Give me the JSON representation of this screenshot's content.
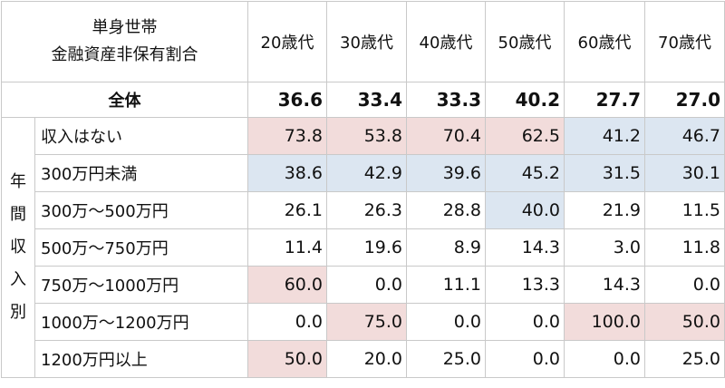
{
  "table": {
    "title_line1": "単身世帯",
    "title_line2": "金融資産非保有割合",
    "columns": [
      "20歳代",
      "30歳代",
      "40歳代",
      "50歳代",
      "60歳代",
      "70歳代"
    ],
    "total": {
      "label": "全体",
      "values": [
        "36.6",
        "33.4",
        "33.3",
        "40.2",
        "27.7",
        "27.0"
      ]
    },
    "group_label": [
      "年",
      "間",
      "収",
      "入",
      "別"
    ],
    "rows": [
      {
        "label": "収入はない",
        "values": [
          "73.8",
          "53.8",
          "70.4",
          "62.5",
          "41.2",
          "46.7"
        ],
        "highlight": [
          "red",
          "red",
          "red",
          "red",
          "blue",
          "blue"
        ]
      },
      {
        "label": "300万円未満",
        "values": [
          "38.6",
          "42.9",
          "39.6",
          "45.2",
          "31.5",
          "30.1"
        ],
        "highlight": [
          "blue",
          "blue",
          "blue",
          "blue",
          "blue",
          "blue"
        ]
      },
      {
        "label": "300万～500万円",
        "values": [
          "26.1",
          "26.3",
          "28.8",
          "40.0",
          "21.9",
          "11.5"
        ],
        "highlight": [
          "",
          "",
          "",
          "blue",
          "",
          ""
        ]
      },
      {
        "label": "500万～750万円",
        "values": [
          "11.4",
          "19.6",
          "8.9",
          "14.3",
          "3.0",
          "11.8"
        ],
        "highlight": [
          "",
          "",
          "",
          "",
          "",
          ""
        ]
      },
      {
        "label": "750万～1000万円",
        "values": [
          "60.0",
          "0.0",
          "11.1",
          "13.3",
          "14.3",
          "0.0"
        ],
        "highlight": [
          "red",
          "",
          "",
          "",
          "",
          ""
        ]
      },
      {
        "label": "1000万～1200万円",
        "values": [
          "0.0",
          "75.0",
          "0.0",
          "0.0",
          "100.0",
          "50.0"
        ],
        "highlight": [
          "",
          "red",
          "",
          "",
          "red",
          "red"
        ]
      },
      {
        "label": "1200万円以上",
        "values": [
          "50.0",
          "20.0",
          "25.0",
          "0.0",
          "0.0",
          "25.0"
        ],
        "highlight": [
          "red",
          "",
          "",
          "",
          "",
          ""
        ]
      }
    ],
    "colors": {
      "red": "#f2dcdb",
      "blue": "#dce6f1"
    }
  }
}
